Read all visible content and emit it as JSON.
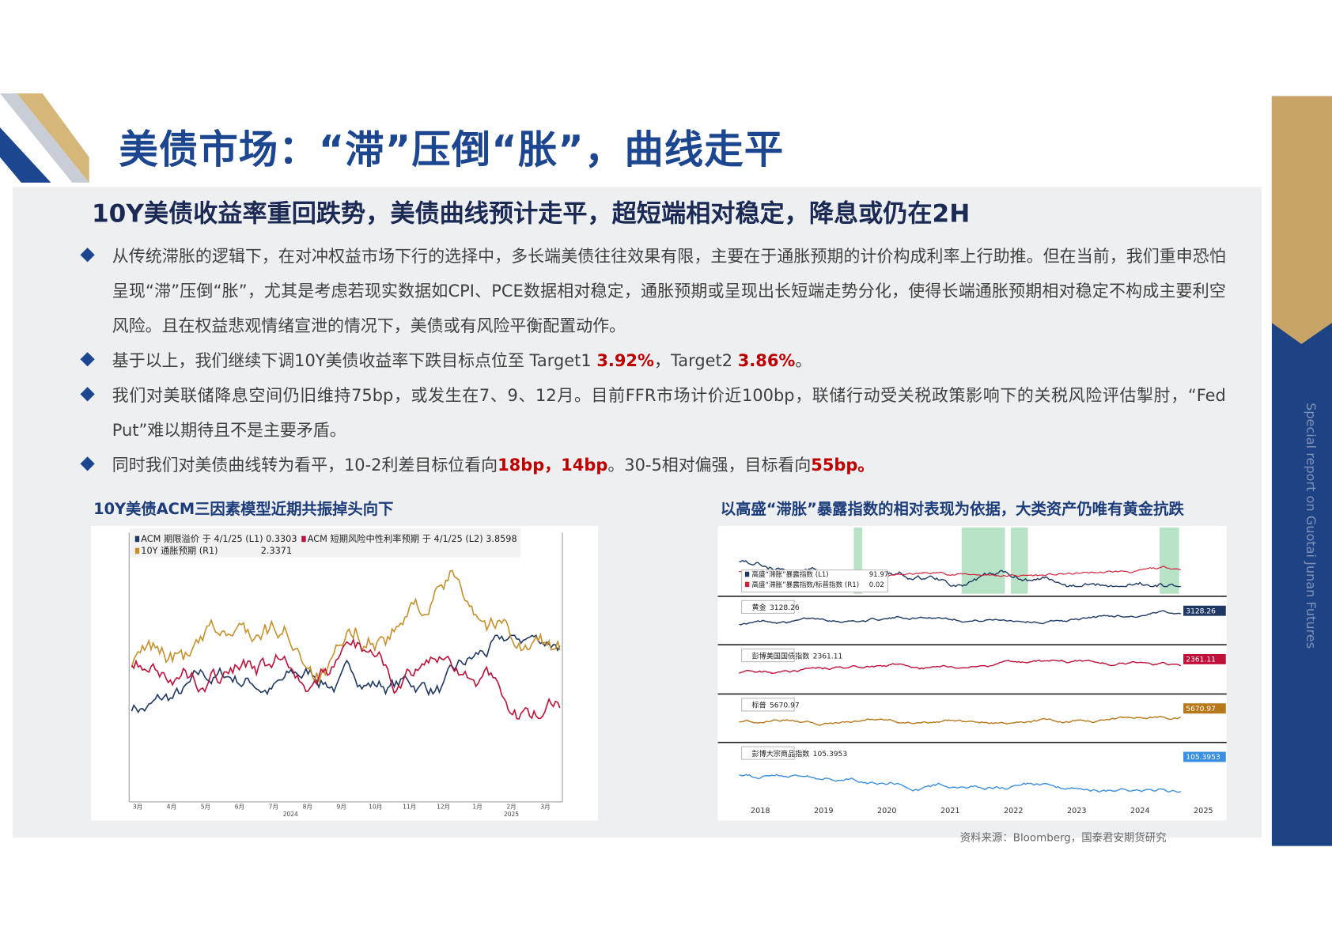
{
  "header": {
    "title": "美债市场：“滞”压倒“胀”，曲线走平",
    "side_text": "Special report on Guotai Junan Futures"
  },
  "section": {
    "subtitle": "10Y美债收益率重回跌势，美债曲线预计走平，超短端相对稳定，降息或仍在2H",
    "bullets": [
      {
        "parts": [
          "从传统滞胀的逻辑下，在对冲权益市场下行的选择中，多长端美债往往效果有限，主要在于通胀预期的计价构成利率上行助推。但在当前，我们重申恐怕呈现“滞”压倒“胀”，尤其是考虑若现实数据如CPI、PCE数据相对稳定，通胀预期或呈现出长短端走势分化，使得长端通胀预期相对稳定不构成主要利空风险。且在权益悲观情绪宣泄的情况下，美债或有风险平衡配置动作。"
        ],
        "highlight": []
      },
      {
        "parts": [
          "基于以上，我们继续下调10Y美债收益率下跌目标点位至 Target1 ",
          "3.92%",
          "，Target2 ",
          "3.86%",
          "。"
        ],
        "highlight": [
          1,
          3
        ]
      },
      {
        "parts": [
          "我们对美联储降息空间仍旧维持75bp，或发生在7、9、12月。目前FFR市场计价近100bp，联储行动受关税政策影响下的关税风险评估掣肘，“Fed Put”难以期待且不是主要矛盾。"
        ],
        "highlight": []
      },
      {
        "parts": [
          "同时我们对美债曲线转为看平，10-2利差目标位看向",
          "18bp，14bp",
          "。30-5相对偏强，目标看向",
          "55bp。"
        ],
        "highlight": [
          1,
          3
        ]
      }
    ]
  },
  "figures": [
    {
      "title": "10Y美债ACM三因素模型近期共振掉头向下",
      "legend": [
        "ACM 期限溢价 于 4/1/25 (L1) 0.3303",
        "ACM 短期风险中性利率预期 于 4/1/25 (L2) 3.8598",
        "10Y 通胀预期 (R1)",
        "2.3371"
      ],
      "x_labels": [
        "3月",
        "4月",
        "5月",
        "6月",
        "7月",
        "8月",
        "9月",
        "10月",
        "11月",
        "12月",
        "1月",
        "2月",
        "3月"
      ],
      "year_labels": [
        "2024",
        "2025"
      ]
    },
    {
      "title": "以高盛“滞胀”暴露指数的相对表现为依据，大类资产仍唯有黄金抗跌",
      "top_panel": [
        "高盛“滞胀”暴露指数 (L1)",
        "91.97",
        "高盛“滞胀”暴露指数/标普指数 (R1)",
        "0.02"
      ],
      "panels": [
        {
          "name": "黄金",
          "last": "3128.26"
        },
        {
          "name": "彭博美国国债指数",
          "last": "2361.11"
        },
        {
          "name": "标普",
          "last": "5670.97"
        },
        {
          "name": "彭博大宗商品指数",
          "last": "105.3953"
        }
      ],
      "x_labels": [
        "2018",
        "2019",
        "2020",
        "2021",
        "2022",
        "2023",
        "2024",
        "2025"
      ]
    }
  ],
  "source": "资料来源：Bloomberg，国泰君安期货研究"
}
